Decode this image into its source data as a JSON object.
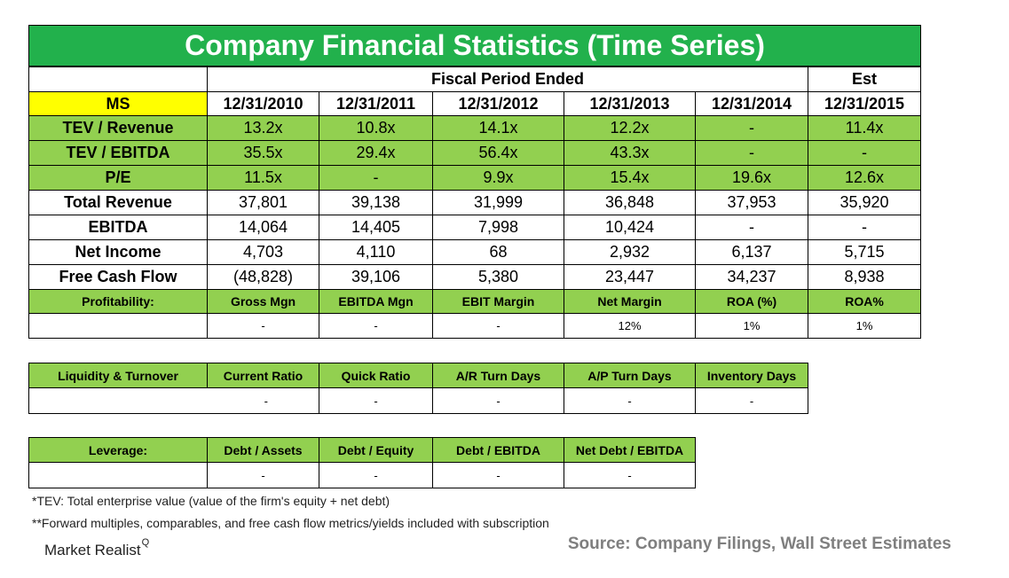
{
  "title": "Company Financial Statistics (Time Series)",
  "fiscal_period_label": "Fiscal Period Ended",
  "est_label": "Est",
  "ticker": "MS",
  "dates": [
    "12/31/2010",
    "12/31/2011",
    "12/31/2012",
    "12/31/2013",
    "12/31/2014",
    "12/31/2015"
  ],
  "valuation_rows": [
    {
      "label": "TEV / Revenue",
      "values": [
        "13.2x",
        "10.8x",
        "14.1x",
        "12.2x",
        "-",
        "11.4x"
      ]
    },
    {
      "label": "TEV / EBITDA",
      "values": [
        "35.5x",
        "29.4x",
        "56.4x",
        "43.3x",
        "-",
        "-"
      ]
    },
    {
      "label": "P/E",
      "values": [
        "11.5x",
        "-",
        "9.9x",
        "15.4x",
        "19.6x",
        "12.6x"
      ]
    }
  ],
  "financial_rows": [
    {
      "label": "Total Revenue",
      "values": [
        "37,801",
        "39,138",
        "31,999",
        "36,848",
        "37,953",
        "35,920"
      ]
    },
    {
      "label": "EBITDA",
      "values": [
        "14,064",
        "14,405",
        "7,998",
        "10,424",
        "-",
        "-"
      ]
    },
    {
      "label": "Net Income",
      "values": [
        "4,703",
        "4,110",
        "68",
        "2,932",
        "6,137",
        "5,715"
      ]
    },
    {
      "label": "Free Cash Flow",
      "values": [
        "(48,828)",
        "39,106",
        "5,380",
        "23,447",
        "34,237",
        "8,938"
      ]
    }
  ],
  "profitability": {
    "label": "Profitability:",
    "headers": [
      "Gross Mgn",
      "EBITDA Mgn",
      "EBIT Margin",
      "Net Margin",
      "ROA (%)",
      "ROA%"
    ],
    "values": [
      "-",
      "-",
      "-",
      "12%",
      "1%",
      "1%"
    ]
  },
  "liquidity": {
    "label": "Liquidity & Turnover",
    "headers": [
      "Current Ratio",
      "Quick Ratio",
      "A/R Turn Days",
      "A/P Turn Days",
      "Inventory Days"
    ],
    "values": [
      "-",
      "-",
      "-",
      "-",
      "-"
    ]
  },
  "leverage": {
    "label": "Leverage:",
    "headers": [
      "Debt / Assets",
      "Debt / Equity",
      "Debt / EBITDA",
      "Net Debt / EBITDA"
    ],
    "values": [
      "-",
      "-",
      "-",
      "-"
    ]
  },
  "footnotes": {
    "tev": "*TEV: Total enterprise value (value of the firm's equity + net debt)",
    "forward": "**Forward multiples, comparables, and free cash flow metrics/yields included with subscription"
  },
  "source": "Source: Company Filings, Wall Street Estimates",
  "logo": {
    "text": "Market Realist",
    "mark": "Q"
  },
  "colors": {
    "title_green": "#22b14c",
    "cell_green": "#92d050",
    "ticker_yellow": "#ffff00",
    "source_gray": "#7f7f7f"
  }
}
